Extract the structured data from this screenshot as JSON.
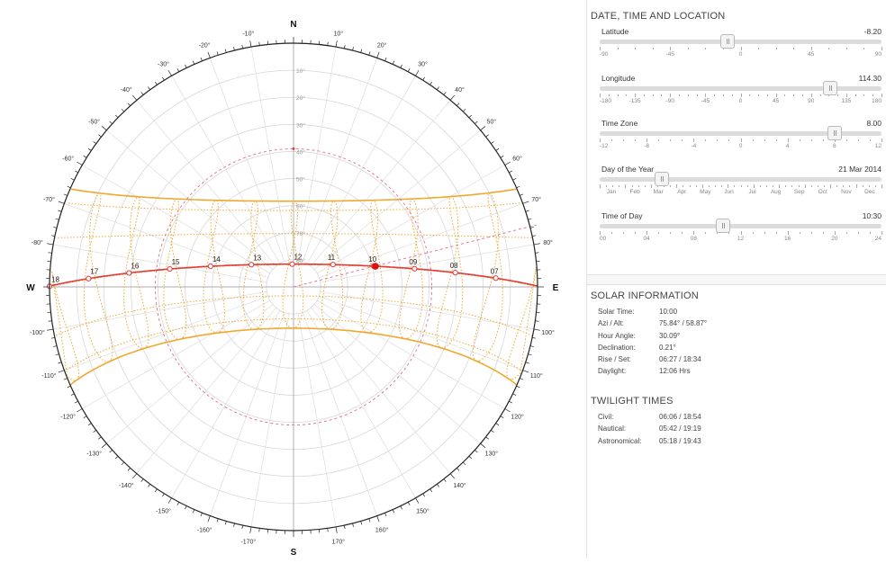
{
  "compass": {
    "north": "N",
    "south": "S",
    "east": "E",
    "west": "W",
    "azimuth_labels_right": [
      "10°",
      "20°",
      "30°",
      "40°",
      "50°",
      "60°",
      "70°",
      "80°",
      "100°",
      "110°",
      "120°",
      "130°",
      "140°",
      "150°",
      "160°",
      "170°"
    ],
    "azimuth_labels_left": [
      "-10°",
      "-20°",
      "-30°",
      "-40°",
      "-50°",
      "-60°",
      "-70°",
      "-80°",
      "-100°",
      "-110°",
      "-120°",
      "-130°",
      "-140°",
      "-150°",
      "-160°",
      "-170°"
    ],
    "altitude_labels": [
      "10°",
      "20°",
      "30°",
      "40°",
      "50°",
      "60°",
      "70°",
      "80°"
    ]
  },
  "sun_path": {
    "hour_labels": [
      "18",
      "17",
      "16",
      "15",
      "14",
      "13",
      "12",
      "11",
      "10",
      "09",
      "08",
      "07"
    ]
  },
  "colors": {
    "sun_path": "#e23b3b",
    "analemma": "#f0a830",
    "horizon": "#222222",
    "grid": "#d8d8d8",
    "accent_dashed": "#e06d8c"
  },
  "panel": {
    "location_title": "DATE, TIME AND LOCATION",
    "sliders": [
      {
        "label": "Latitude",
        "value": "-8.20",
        "ticks": [
          "-90",
          "-45",
          "0",
          "45",
          "90"
        ],
        "fraction": 0.454
      },
      {
        "label": "Longitude",
        "value": "114.30",
        "ticks": [
          "-180",
          "-135",
          "-90",
          "-45",
          "0",
          "45",
          "90",
          "135",
          "180"
        ],
        "fraction": 0.818
      },
      {
        "label": "Time Zone",
        "value": "8.00",
        "ticks": [
          "-12",
          "-8",
          "-4",
          "0",
          "4",
          "8",
          "12"
        ],
        "fraction": 0.833
      },
      {
        "label": "Day of the Year",
        "value": "21 Mar 2014",
        "ticks": [
          "Jan",
          "Feb",
          "Mar",
          "Apr",
          "May",
          "Jun",
          "Jul",
          "Aug",
          "Sep",
          "Oct",
          "Nov",
          "Dec"
        ],
        "fraction": 0.22
      },
      {
        "label": "Time of Day",
        "value": "10:30",
        "ticks": [
          "00",
          "04",
          "08",
          "12",
          "16",
          "20",
          "24"
        ],
        "fraction": 0.4375
      }
    ],
    "solar_title": "SOLAR INFORMATION",
    "solar": [
      {
        "k": "Solar Time:",
        "v": "10:00"
      },
      {
        "k": "Azi / Alt:",
        "v": "75.84° / 58.87°"
      },
      {
        "k": "Hour Angle:",
        "v": "30.09°"
      },
      {
        "k": "Declination:",
        "v": "0.21°"
      },
      {
        "k": "Rise / Set:",
        "v": "06:27 / 18:34"
      },
      {
        "k": "Daylight:",
        "v": "12:06 Hrs"
      }
    ],
    "twilight_title": "TWILIGHT TIMES",
    "twilight": [
      {
        "k": "Civil:",
        "v": "06:06 / 18:54"
      },
      {
        "k": "Nautical:",
        "v": "05:42 / 19:19"
      },
      {
        "k": "Astronomical:",
        "v": "05:18 / 19:43"
      }
    ]
  }
}
